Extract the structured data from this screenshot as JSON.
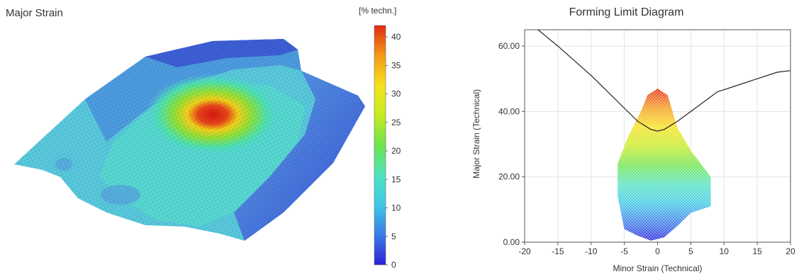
{
  "left": {
    "title": "Major Strain",
    "colorbar": {
      "unit": "[% techn.]",
      "ticks": [
        "40",
        "35",
        "30",
        "25",
        "20",
        "15",
        "10",
        "5",
        "0"
      ],
      "min": 0,
      "max": 42,
      "colors": [
        "#2b1fd8",
        "#3a7be8",
        "#3fc7e6",
        "#4fe3c0",
        "#6ee44c",
        "#c6ec22",
        "#f5e21c",
        "#f59a17",
        "#e22a12"
      ]
    }
  },
  "chart_data": {
    "type": "scatter",
    "title": "Forming Limit Diagram",
    "xlabel": "Minor Strain (Technical)",
    "ylabel": "Major Strain (Technical)",
    "xlim": [
      -20,
      20
    ],
    "ylim": [
      0,
      65
    ],
    "xticks": [
      "-20",
      "-15",
      "-10",
      "-5",
      "0",
      "5",
      "10",
      "15",
      "20"
    ],
    "yticks": [
      "0.00",
      "20.00",
      "40.00",
      "60.00"
    ],
    "ytick_values": [
      0,
      20,
      40,
      60
    ],
    "grid": true,
    "flc": {
      "x": [
        -18,
        -15,
        -10,
        -6,
        -3,
        -1,
        0,
        1,
        3,
        6,
        9,
        12,
        15,
        18,
        20
      ],
      "y": [
        65,
        60,
        51,
        43,
        37,
        34.5,
        34,
        34.5,
        37,
        41.5,
        46,
        48,
        50,
        52,
        52.5
      ]
    },
    "point_cloud_envelope": {
      "x": [
        -1.5,
        0,
        1.5,
        3,
        5,
        8,
        8,
        5,
        3,
        1,
        -1,
        -3,
        -5,
        -6,
        -6,
        -4.5,
        -2.5
      ],
      "y": [
        45,
        47,
        45,
        35,
        28,
        20,
        11,
        9,
        5,
        1.5,
        0.5,
        2,
        4,
        14,
        24,
        32,
        40
      ]
    }
  }
}
